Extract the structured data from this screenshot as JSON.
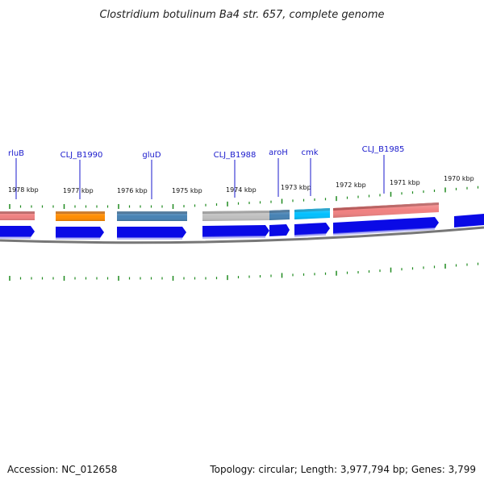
{
  "title": "Clostridium botulinum Ba4 str. 657, complete genome",
  "accession": "Accession: NC_012658",
  "summary": "Topology: circular; Length: 3,977,794 bp; Genes: 3,799",
  "colors": {
    "tick": "#1f8a1f",
    "backbone": "#777777",
    "label": "#1a1acc",
    "cds": "#0a0ae6"
  },
  "tick_labels": [
    {
      "kbp": 1978,
      "text": "1978 kbp"
    },
    {
      "kbp": 1977,
      "text": "1977 kbp"
    },
    {
      "kbp": 1976,
      "text": "1976 kbp"
    },
    {
      "kbp": 1975,
      "text": "1975 kbp"
    },
    {
      "kbp": 1974,
      "text": "1974 kbp"
    },
    {
      "kbp": 1973,
      "text": "1973 kbp"
    },
    {
      "kbp": 1972,
      "text": "1972 kbp"
    },
    {
      "kbp": 1971,
      "text": "1971 kbp"
    },
    {
      "kbp": 1970,
      "text": "1970 kbp"
    }
  ],
  "gene_labels": [
    {
      "text": "rluB",
      "color": "#f08080"
    },
    {
      "text": "CLJ_B1990",
      "color": "#ff8c00"
    },
    {
      "text": "gluD",
      "color": "#4682b4"
    },
    {
      "text": "CLJ_B1988",
      "color": "#c0c0c0"
    },
    {
      "text": "aroH",
      "color": "#4682b4"
    },
    {
      "text": "cmk",
      "color": "#00bfff"
    },
    {
      "text": "CLJ_B1985",
      "color": "#f08080"
    }
  ]
}
